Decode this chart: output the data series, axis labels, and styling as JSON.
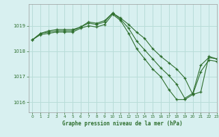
{
  "title": "Graphe pression niveau de la mer (hPa)",
  "bg_color": "#d8f0f0",
  "grid_color": "#b8dcd8",
  "line_color": "#2d6e2d",
  "xlim": [
    -0.5,
    23
  ],
  "ylim": [
    1015.6,
    1019.85
  ],
  "yticks": [
    1016,
    1017,
    1018,
    1019
  ],
  "xticks": [
    0,
    1,
    2,
    3,
    4,
    5,
    6,
    7,
    8,
    9,
    10,
    11,
    12,
    13,
    14,
    15,
    16,
    17,
    18,
    19,
    20,
    21,
    22,
    23
  ],
  "series": [
    [
      1018.45,
      1018.7,
      1018.8,
      1018.85,
      1018.85,
      1018.85,
      1018.95,
      1019.15,
      1019.1,
      1019.2,
      1019.5,
      1019.3,
      1019.05,
      1018.75,
      1018.5,
      1018.1,
      1017.8,
      1017.55,
      1017.3,
      1016.95,
      1016.3,
      1016.4,
      1017.8,
      1017.7
    ],
    [
      1018.45,
      1018.7,
      1018.75,
      1018.8,
      1018.8,
      1018.8,
      1018.95,
      1019.1,
      1019.05,
      1019.15,
      1019.5,
      1019.25,
      1018.9,
      1018.4,
      1018.05,
      1017.7,
      1017.35,
      1017.05,
      1016.7,
      1016.15,
      1016.35,
      1017.45,
      1017.75,
      1017.7
    ],
    [
      1018.45,
      1018.65,
      1018.7,
      1018.75,
      1018.75,
      1018.75,
      1018.9,
      1019.0,
      1018.95,
      1019.05,
      1019.45,
      1019.2,
      1018.7,
      1018.1,
      1017.7,
      1017.3,
      1017.0,
      1016.5,
      1016.1,
      1016.1,
      1016.3,
      1017.2,
      1017.65,
      1017.6
    ]
  ]
}
